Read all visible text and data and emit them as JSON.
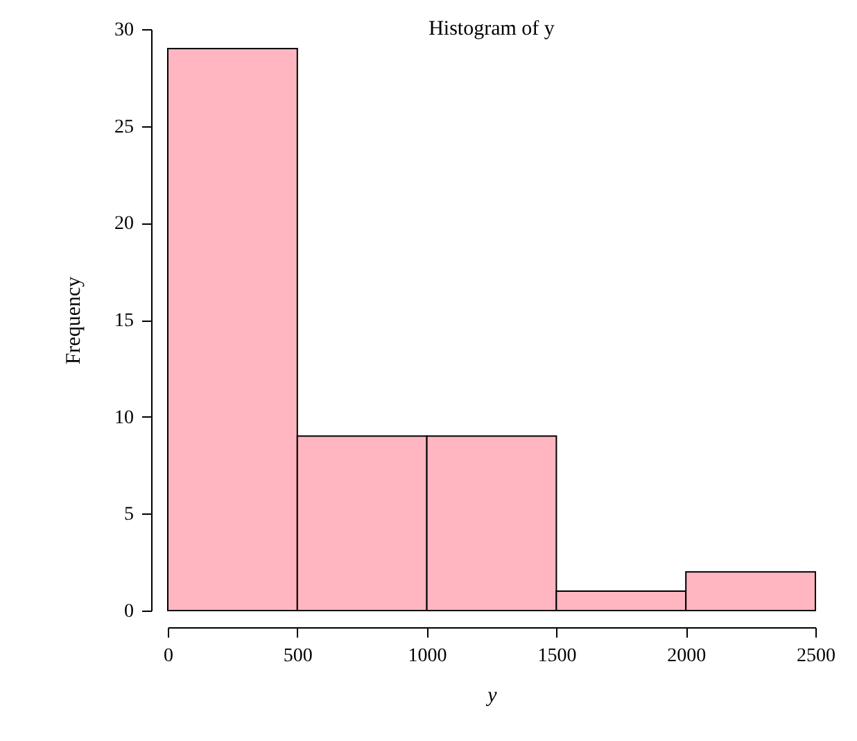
{
  "chart_data": {
    "type": "histogram",
    "title": "Histogram of y",
    "xlabel": "y",
    "ylabel": "Frequency",
    "bins": [
      0,
      500,
      1000,
      1500,
      2000,
      2500
    ],
    "values": [
      29,
      9,
      9,
      1,
      2
    ],
    "color": "#ffb6c1",
    "xlim": [
      0,
      2500
    ],
    "xticks": [
      0,
      500,
      1000,
      1500,
      2000,
      2500
    ],
    "ylim": [
      0,
      30
    ],
    "yticks": [
      0,
      5,
      10,
      15,
      20,
      25,
      30
    ],
    "grid": false
  }
}
